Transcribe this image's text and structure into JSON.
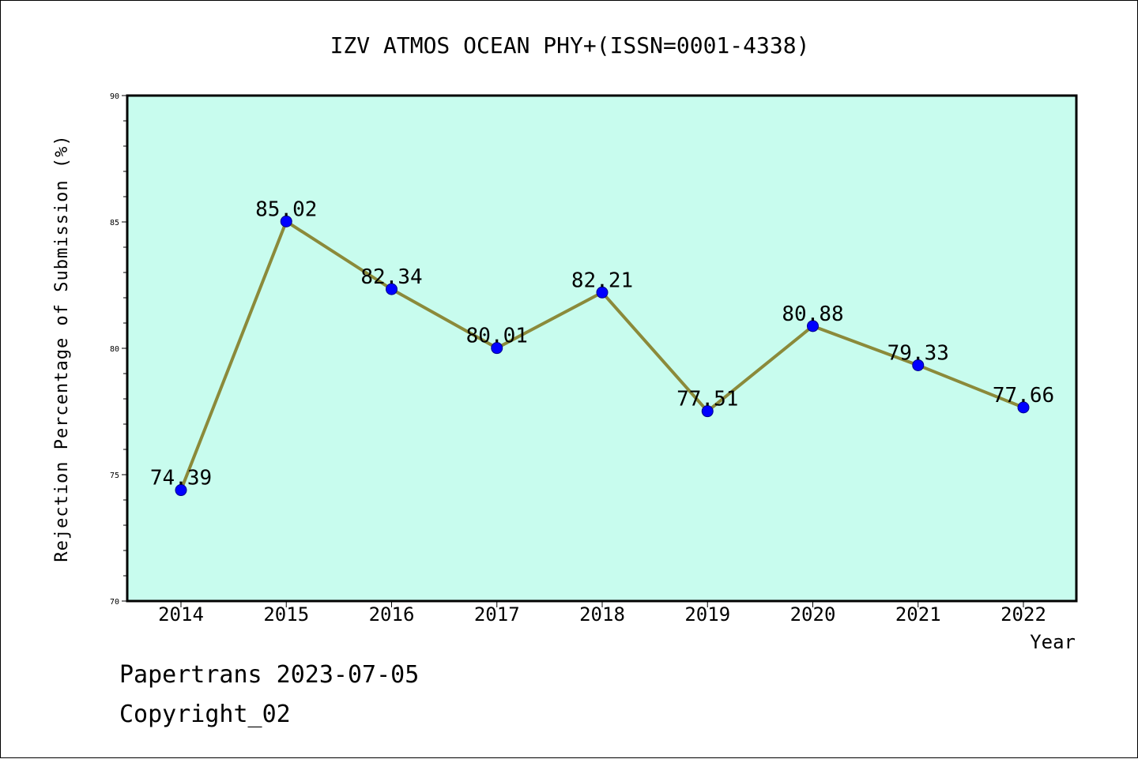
{
  "chart_data": {
    "type": "line",
    "title": "IZV ATMOS OCEAN PHY+(ISSN=0001-4338)",
    "xlabel": "Year",
    "ylabel": "Rejection Percentage of Submission (%)",
    "categories": [
      "2014",
      "2015",
      "2016",
      "2017",
      "2018",
      "2019",
      "2020",
      "2021",
      "2022"
    ],
    "values": [
      74.39,
      85.02,
      82.34,
      80.01,
      82.21,
      77.51,
      80.88,
      79.33,
      77.66
    ],
    "data_labels": [
      "74.39",
      "85.02",
      "82.34",
      "80.01",
      "82.21",
      "77.51",
      "80.88",
      "79.33",
      "77.66"
    ],
    "ylim": [
      70,
      90
    ],
    "yticks": [
      "70",
      "75",
      "80",
      "85",
      "90"
    ],
    "grid": false,
    "legend": "none",
    "colors": {
      "plot_background": "#c8fcee",
      "line": "#8b8a3a",
      "marker": "#0000ff"
    }
  },
  "footer": {
    "line1": "Papertrans 2023-07-05",
    "line2": "Copyright_02"
  }
}
